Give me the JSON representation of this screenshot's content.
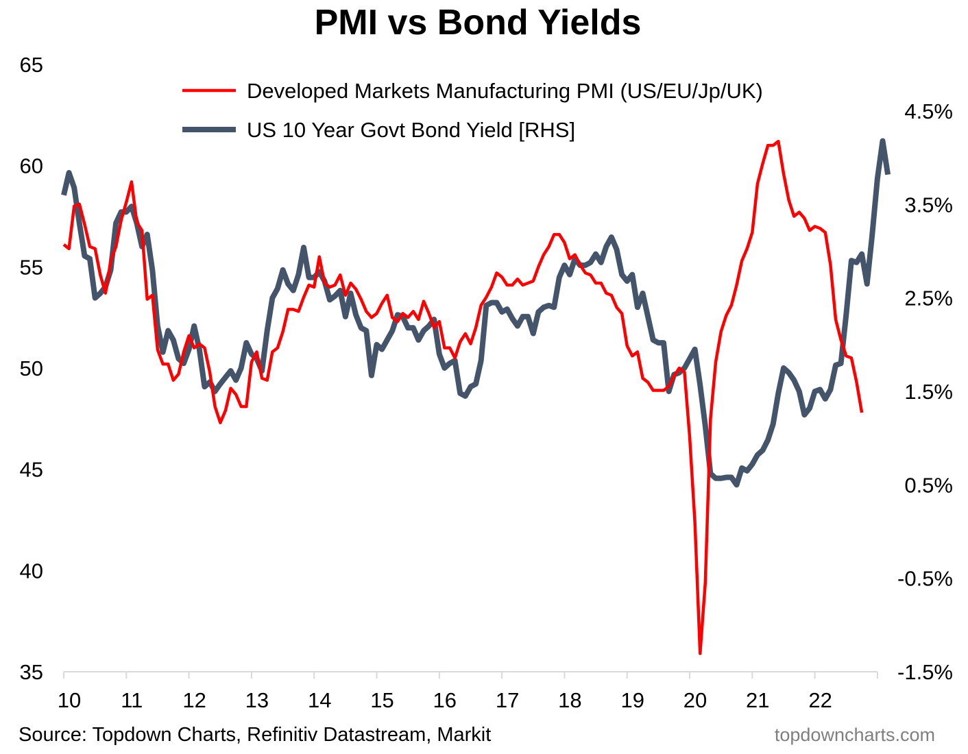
{
  "chart_data": {
    "type": "line",
    "title": "PMI vs Bond Yields",
    "x_ticks": [
      "10",
      "11",
      "12",
      "13",
      "14",
      "15",
      "16",
      "17",
      "18",
      "19",
      "20",
      "21",
      "22"
    ],
    "x_start_year": 2010,
    "y_left": {
      "ylim": [
        35,
        65
      ],
      "ticks": [
        "35",
        "40",
        "45",
        "50",
        "55",
        "60",
        "65"
      ]
    },
    "y_right": {
      "ylim": [
        -1.5,
        4.5
      ],
      "ticks": [
        "-1.5%",
        "-0.5%",
        "0.5%",
        "1.5%",
        "2.5%",
        "3.5%",
        "4.5%"
      ]
    },
    "legend": "top-center",
    "series": [
      {
        "name": "Developed Markets Manufacturing PMI (US/EU/Jp/UK)",
        "axis": "left",
        "color": "#ff0000",
        "months_start": "2010-01",
        "values": [
          56.1,
          55.9,
          58.0,
          58.1,
          57.1,
          56.0,
          55.9,
          54.6,
          53.7,
          55.3,
          56.0,
          57.3,
          58.2,
          59.2,
          57.2,
          56.8,
          53.4,
          53.6,
          50.9,
          50.2,
          50.2,
          49.4,
          49.7,
          50.8,
          51.6,
          51.0,
          51.2,
          51.0,
          49.8,
          48.1,
          47.3,
          47.9,
          49.0,
          48.7,
          48.1,
          48.1,
          50.3,
          50.8,
          49.5,
          49.4,
          50.8,
          51.0,
          51.8,
          52.9,
          52.9,
          52.8,
          53.5,
          54.1,
          54.0,
          55.5,
          54.2,
          54.0,
          54.1,
          54.6,
          53.6,
          54.2,
          53.9,
          53.4,
          52.8,
          52.5,
          52.7,
          53.2,
          53.6,
          52.5,
          52.3,
          52.7,
          52.5,
          52.8,
          52.4,
          53.3,
          52.7,
          52.0,
          52.3,
          51.0,
          51.0,
          50.5,
          51.3,
          51.7,
          51.2,
          52.0,
          53.1,
          53.5,
          54.0,
          54.7,
          54.5,
          54.1,
          54.1,
          54.4,
          54.1,
          54.2,
          54.3,
          55.0,
          55.6,
          56.0,
          56.6,
          56.6,
          56.2,
          55.4,
          55.6,
          55.1,
          54.7,
          54.6,
          54.2,
          54.2,
          53.7,
          53.6,
          53.0,
          52.7,
          51.1,
          50.6,
          50.8,
          49.5,
          49.3,
          48.9,
          48.9,
          48.9,
          49.1,
          49.6,
          50.0,
          49.8,
          46.6,
          42.4,
          35.9,
          39.4,
          47.5,
          50.3,
          51.8,
          52.6,
          53.1,
          54.1,
          55.3,
          55.9,
          56.7,
          59.1,
          60.1,
          61.0,
          61.0,
          61.2,
          59.6,
          58.3,
          57.5,
          57.7,
          57.4,
          56.8,
          57.0,
          56.9,
          56.7,
          55.1,
          52.4,
          51.4,
          50.6,
          50.5,
          49.3,
          47.8
        ]
      },
      {
        "name": "US 10 Year Govt Bond Yield [RHS]",
        "axis": "right",
        "color": "#44546a",
        "months_start": "2010-01",
        "values": [
          3.6,
          3.84,
          3.68,
          3.3,
          2.95,
          2.92,
          2.5,
          2.55,
          2.62,
          2.8,
          3.3,
          3.42,
          3.42,
          3.48,
          3.3,
          3.05,
          3.18,
          2.8,
          2.2,
          1.92,
          2.15,
          2.05,
          1.85,
          1.8,
          1.95,
          2.2,
          1.95,
          1.55,
          1.6,
          1.5,
          1.58,
          1.65,
          1.72,
          1.62,
          1.75,
          2.02,
          1.9,
          1.85,
          1.72,
          2.15,
          2.5,
          2.6,
          2.8,
          2.65,
          2.58,
          2.75,
          3.04,
          2.72,
          2.72,
          2.78,
          2.68,
          2.48,
          2.52,
          2.58,
          2.3,
          2.55,
          2.32,
          2.18,
          2.15,
          1.67,
          2.0,
          1.95,
          2.05,
          2.15,
          2.32,
          2.3,
          2.18,
          2.18,
          2.05,
          2.15,
          2.2,
          2.27,
          1.9,
          1.75,
          1.8,
          1.83,
          1.48,
          1.45,
          1.55,
          1.58,
          1.83,
          2.42,
          2.45,
          2.45,
          2.35,
          2.38,
          2.28,
          2.2,
          2.3,
          2.3,
          2.12,
          2.35,
          2.4,
          2.42,
          2.4,
          2.72,
          2.85,
          2.75,
          2.92,
          2.85,
          2.85,
          2.88,
          2.97,
          2.88,
          3.05,
          3.15,
          3.02,
          2.75,
          2.68,
          2.75,
          2.4,
          2.55,
          2.3,
          2.05,
          2.02,
          2.02,
          1.5,
          1.68,
          1.7,
          1.75,
          1.85,
          1.95,
          1.57,
          1.13,
          0.62,
          0.57,
          0.57,
          0.58,
          0.58,
          0.5,
          0.68,
          0.65,
          0.72,
          0.82,
          0.87,
          0.98,
          1.15,
          1.48,
          1.75,
          1.7,
          1.62,
          1.5,
          1.25,
          1.32,
          1.5,
          1.52,
          1.42,
          1.52,
          1.78,
          1.8,
          2.32,
          2.9,
          2.88,
          2.97,
          2.65,
          3.18,
          3.78,
          4.18,
          3.82
        ]
      }
    ]
  },
  "footer": {
    "source": "Source: Topdown Charts, Refinitiv Datastream, Markit",
    "site": "topdowncharts.com"
  }
}
